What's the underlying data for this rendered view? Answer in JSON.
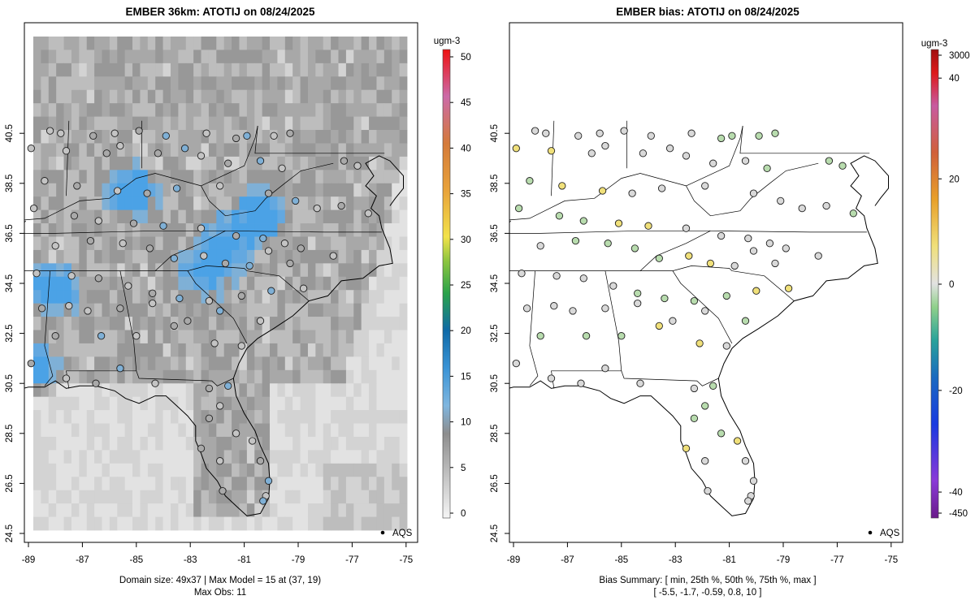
{
  "left_panel": {
    "title": "EMBER 36km: ATOTIJ on 08/24/2025",
    "colorbar_unit": "ugm-3",
    "colorbar_labels": [
      "0",
      "5",
      "10",
      "15",
      "20",
      "25",
      "30",
      "35",
      "40",
      "45",
      "50"
    ],
    "legend_label": "AQS",
    "footer_line1": "Domain size: 49x37 | Max Model = 15 at (37, 19)",
    "footer_line2": "Max Obs: 11"
  },
  "right_panel": {
    "title": "EMBER bias: ATOTIJ on 08/24/2025",
    "colorbar_unit": "ugm-3",
    "colorbar_labels": [
      "-450",
      "-40",
      "-20",
      "0",
      "20",
      "40",
      "3000"
    ],
    "legend_label": "AQS",
    "footer_line1": "Bias Summary: [ min, 25th %, 50th %, 75th %, max ]",
    "footer_line2": "[ -5.5,   -1.7,   -0.59,   0.8,   10 ]"
  },
  "axes": {
    "x_ticks": [
      "-89",
      "-87",
      "-85",
      "-83",
      "-81",
      "-79",
      "-77",
      "-75"
    ],
    "y_ticks": [
      "24.5",
      "26.5",
      "28.5",
      "30.5",
      "32.5",
      "34.5",
      "36.5",
      "38.5",
      "40.5"
    ]
  },
  "colors": {
    "model_colorscale": [
      "#f0f0f0",
      "#bdbdbd",
      "#8a8a8a",
      "#6aaee0",
      "#4da6e6",
      "#2f8fd0",
      "#3cb371",
      "#f2e24a",
      "#e88a2a",
      "#d062a0",
      "#e81a1a"
    ],
    "bias_zero": "#d9d9d9",
    "bias_negative": "#b8dcae",
    "bias_positive": "#f0e07a"
  }
}
